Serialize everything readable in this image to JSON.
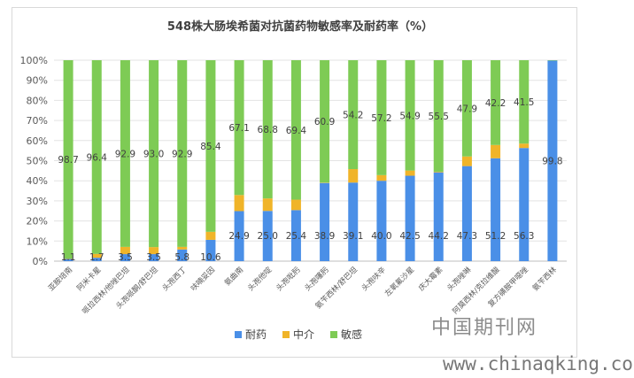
{
  "chart_data": {
    "type": "bar",
    "stacked": "percent",
    "title": "548株大肠埃希菌对抗菌药物敏感率及耐药率（%）",
    "xlabel": "",
    "ylabel": "",
    "ylim": [
      0,
      100
    ],
    "y_ticks": [
      "0%",
      "10%",
      "20%",
      "30%",
      "40%",
      "50%",
      "60%",
      "70%",
      "80%",
      "90%",
      "100%"
    ],
    "grid": true,
    "legend_position": "bottom",
    "categories": [
      "亚胺培南",
      "阿米卡星",
      "哌拉西林/他唑巴坦",
      "头孢哌酮/舒巴坦",
      "头孢西丁",
      "呋喃妥因",
      "氨曲南",
      "头孢他啶",
      "头孢吡肟",
      "头孢噻肟",
      "氨苄西林/舒巴坦",
      "头孢呋辛",
      "左氧氟沙星",
      "庆大霉素",
      "头孢唑啉",
      "阿莫西林/克拉维酸",
      "复方磺胺甲噁唑",
      "氨苄西林"
    ],
    "series": [
      {
        "name": "耐药",
        "color": "#4a8fe7",
        "values": [
          1.1,
          1.7,
          3.5,
          3.5,
          5.8,
          10.6,
          24.9,
          25.0,
          25.4,
          38.9,
          39.1,
          40.0,
          42.5,
          44.2,
          47.3,
          51.2,
          56.3,
          99.8
        ]
      },
      {
        "name": "中介",
        "color": "#f0b429",
        "values": [
          0.2,
          1.9,
          3.6,
          3.5,
          1.3,
          4.0,
          8.0,
          6.2,
          5.2,
          0.2,
          6.7,
          2.8,
          2.6,
          0.3,
          4.8,
          6.6,
          2.2,
          0.0
        ]
      },
      {
        "name": "敏感",
        "color": "#7ecb55",
        "values": [
          98.7,
          96.4,
          92.9,
          93.0,
          92.9,
          85.4,
          67.1,
          68.8,
          69.4,
          60.9,
          54.2,
          57.2,
          54.9,
          55.5,
          47.9,
          42.2,
          41.5,
          0.2
        ]
      }
    ],
    "data_labels": {
      "耐药": [
        "1.1",
        "1.7",
        "3.5",
        "3.5",
        "5.8",
        "10.6",
        "24.9",
        "25.0",
        "25.4",
        "38.9",
        "39.1",
        "40.0",
        "42.5",
        "44.2",
        "47.3",
        "51.2",
        "56.3",
        "99.8"
      ],
      "敏感": [
        "98.7",
        "96.4",
        "92.9",
        "93.0",
        "92.9",
        "85.4",
        "67.1",
        "68.8",
        "69.4",
        "60.9",
        "54.2",
        "57.2",
        "54.9",
        "55.5",
        "47.9",
        "42.2",
        "41.5",
        ""
      ]
    }
  },
  "watermark": {
    "text_cn": "中国期刊网",
    "url": "www.chinaqking.com"
  }
}
